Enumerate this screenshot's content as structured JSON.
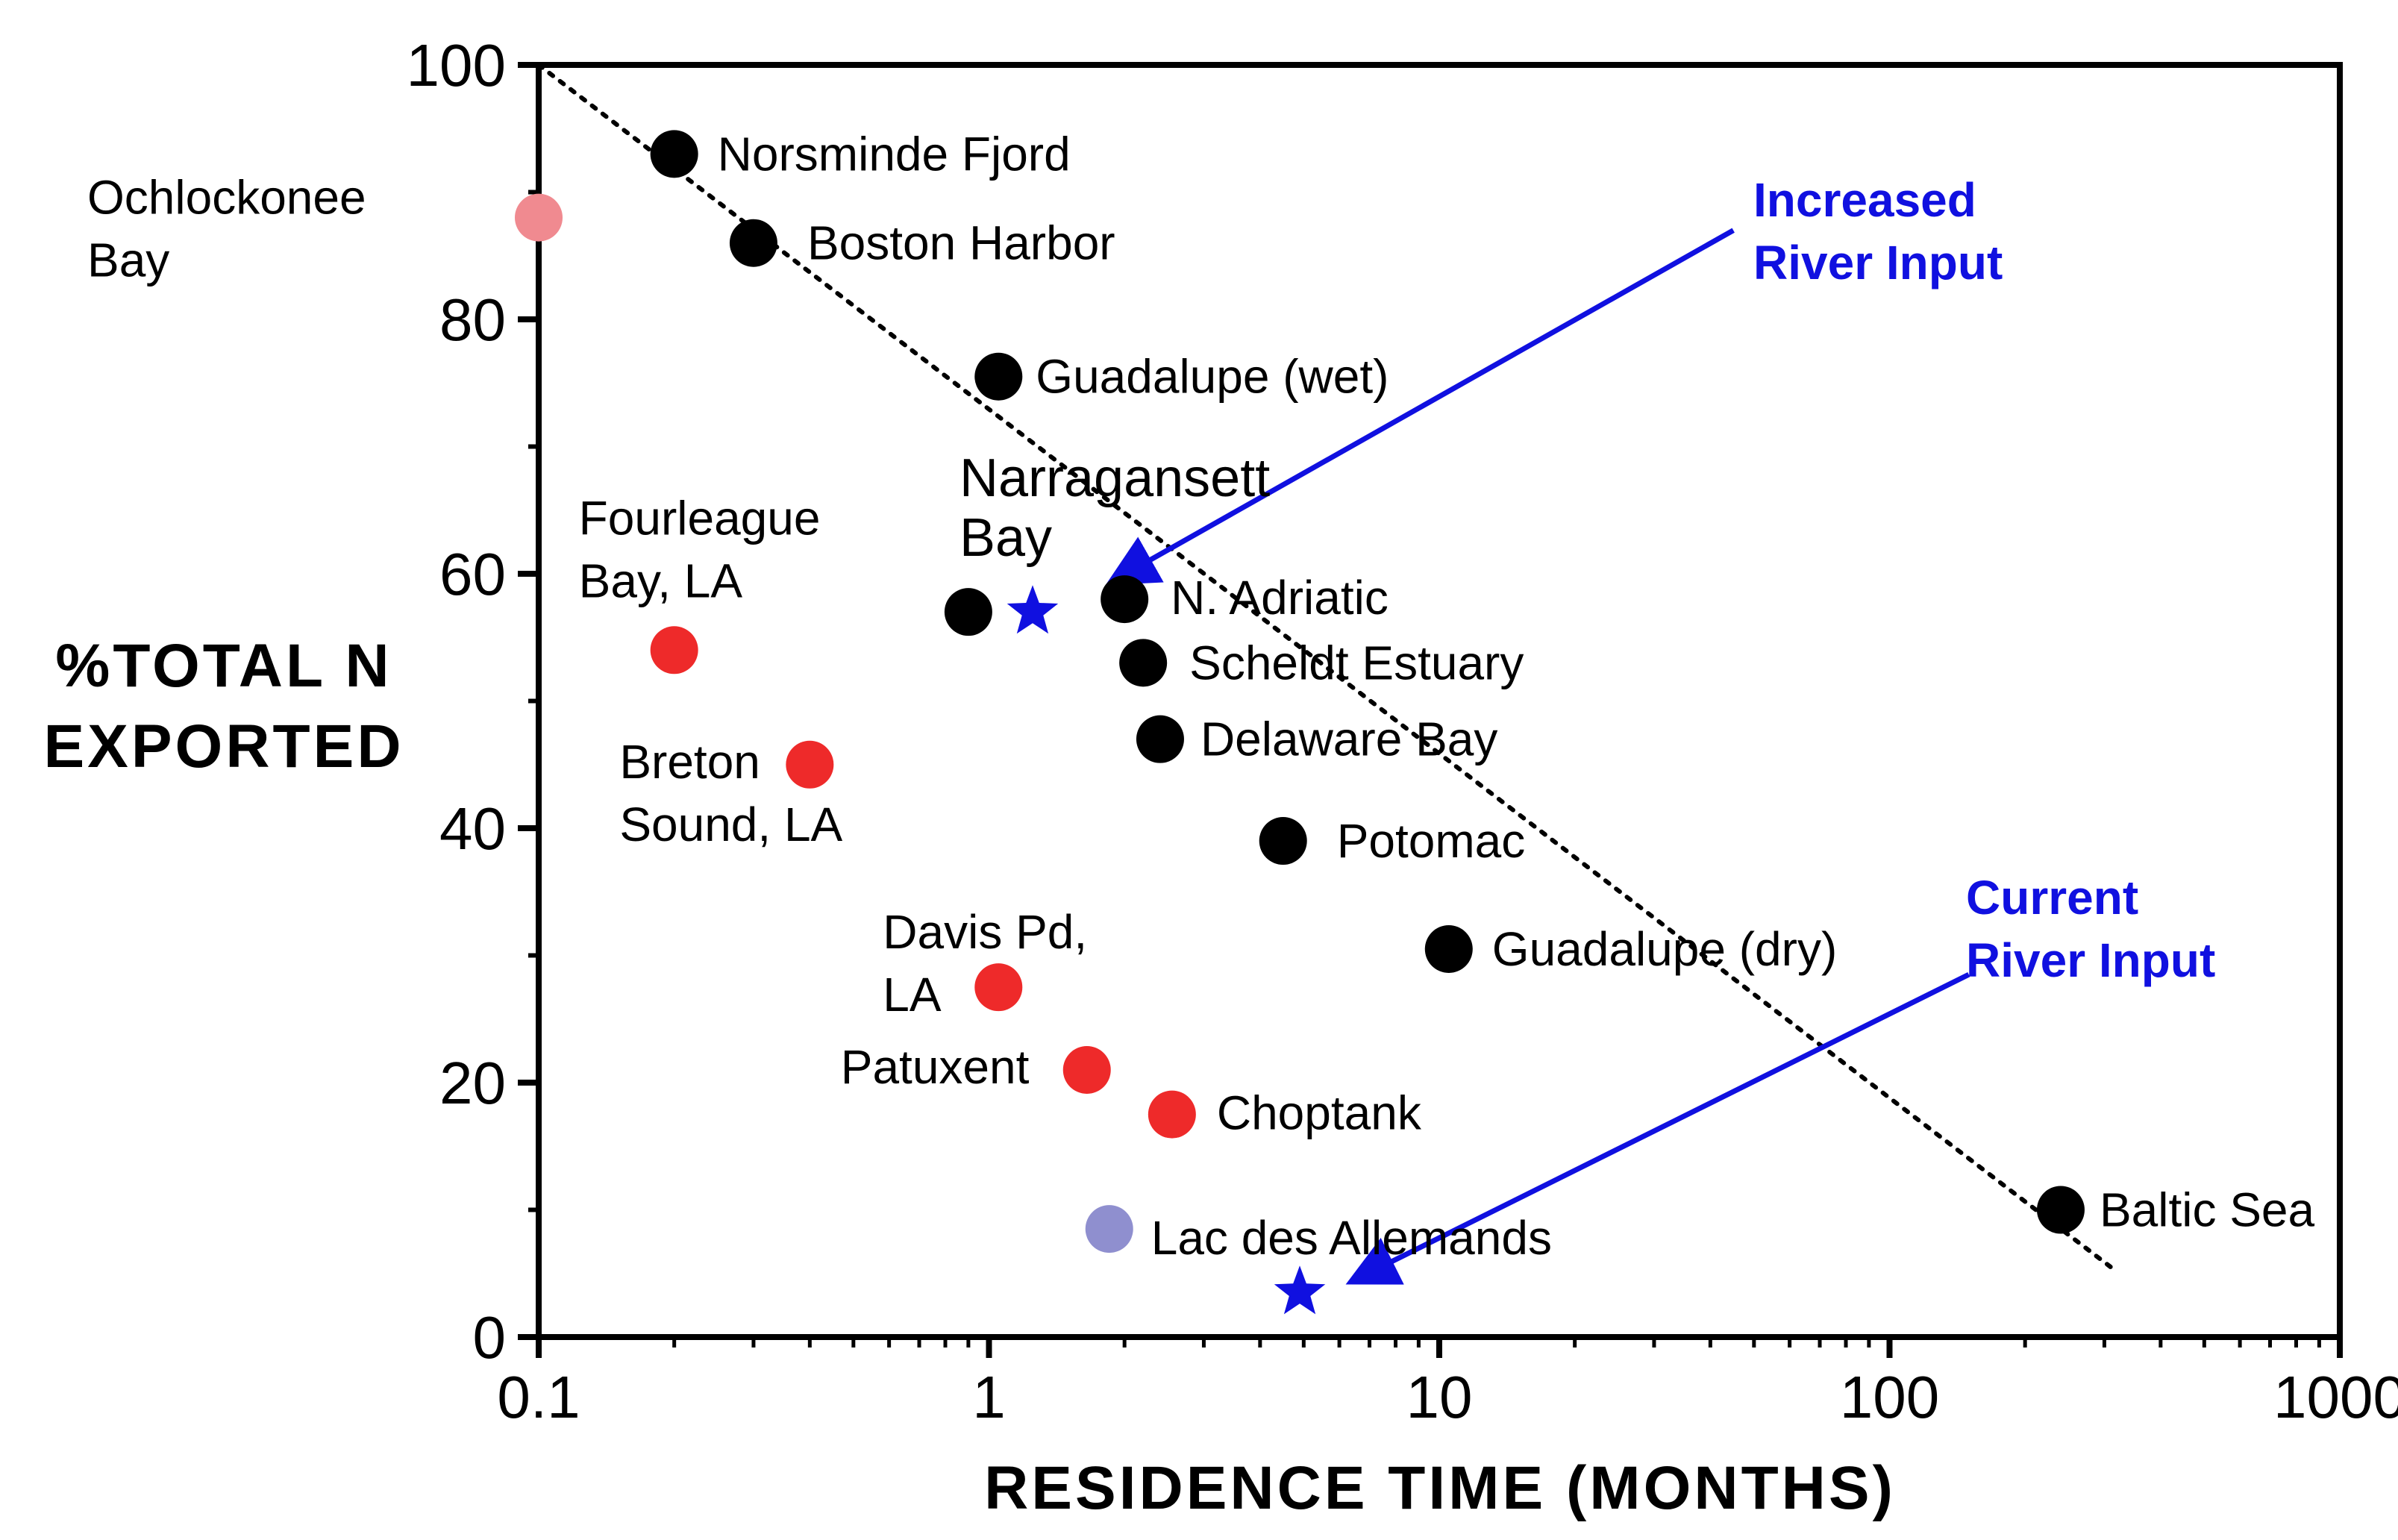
{
  "chart_data": {
    "type": "scatter",
    "xlabel": "RESIDENCE TIME (MONTHS)",
    "ylabel": [
      "%TOTAL N",
      "EXPORTED"
    ],
    "x_scale": "log",
    "xlim": [
      0.1,
      1000
    ],
    "ylim": [
      0,
      100
    ],
    "x_ticks": [
      {
        "value": 0.1,
        "label": "0.1"
      },
      {
        "value": 1,
        "label": "1"
      },
      {
        "value": 10,
        "label": "10"
      },
      {
        "value": 100,
        "label": "100"
      },
      {
        "value": 1000,
        "label": "1000"
      }
    ],
    "y_ticks": [
      {
        "value": 0,
        "label": "0"
      },
      {
        "value": 20,
        "label": "20"
      },
      {
        "value": 40,
        "label": "40"
      },
      {
        "value": 60,
        "label": "60"
      },
      {
        "value": 80,
        "label": "80"
      },
      {
        "value": 100,
        "label": "100"
      }
    ],
    "grid": false,
    "colors": {
      "black": "#000000",
      "red": "#ee2a2a",
      "pink": "#f08a90",
      "lavender": "#8f8fcf",
      "blue": "#1010e0",
      "trend": "#000000"
    },
    "points": [
      {
        "id": "norsminde",
        "x": 0.2,
        "y": 93,
        "color": "black",
        "label": [
          "Norsminde Fjord"
        ],
        "marker": "circle"
      },
      {
        "id": "ochlockonee",
        "x": 0.1,
        "y": 88,
        "color": "pink",
        "label": [
          "Ochlockonee",
          "Bay"
        ],
        "marker": "circle"
      },
      {
        "id": "boston",
        "x": 0.3,
        "y": 86,
        "color": "black",
        "label": [
          "Boston Harbor"
        ],
        "marker": "circle"
      },
      {
        "id": "guadalupe-wet",
        "x": 1.05,
        "y": 75.5,
        "color": "black",
        "label": [
          "Guadalupe (wet)"
        ],
        "marker": "circle"
      },
      {
        "id": "fourleague",
        "x": 0.2,
        "y": 54,
        "color": "red",
        "label": [
          "Fourleague",
          "Bay, LA"
        ],
        "marker": "circle"
      },
      {
        "id": "narragansett-dot",
        "x": 0.9,
        "y": 57,
        "color": "black",
        "label": [],
        "marker": "circle"
      },
      {
        "id": "narragansett",
        "x": 1.25,
        "y": 57,
        "color": "blue",
        "label": [
          "Narragansett",
          "Bay"
        ],
        "marker": "star"
      },
      {
        "id": "n-adriatic",
        "x": 2.0,
        "y": 58,
        "color": "black",
        "label": [
          "N. Adriatic"
        ],
        "marker": "circle"
      },
      {
        "id": "scheldt",
        "x": 2.2,
        "y": 53,
        "color": "black",
        "label": [
          "Scheldt Estuary"
        ],
        "marker": "circle"
      },
      {
        "id": "delaware",
        "x": 2.4,
        "y": 47,
        "color": "black",
        "label": [
          "Delaware Bay"
        ],
        "marker": "circle"
      },
      {
        "id": "breton",
        "x": 0.4,
        "y": 45,
        "color": "red",
        "label": [
          "Breton",
          "Sound, LA"
        ],
        "marker": "circle"
      },
      {
        "id": "potomac",
        "x": 4.5,
        "y": 39,
        "color": "black",
        "label": [
          "Potomac"
        ],
        "marker": "circle"
      },
      {
        "id": "guadalupe-dry",
        "x": 10.5,
        "y": 30.5,
        "color": "black",
        "label": [
          "Guadalupe (dry)"
        ],
        "marker": "circle"
      },
      {
        "id": "davis",
        "x": 1.05,
        "y": 27.5,
        "color": "red",
        "label": [
          "Davis Pd,",
          "LA"
        ],
        "marker": "circle"
      },
      {
        "id": "patuxent",
        "x": 1.65,
        "y": 21,
        "color": "red",
        "label": [
          "Patuxent"
        ],
        "marker": "circle"
      },
      {
        "id": "choptank",
        "x": 2.55,
        "y": 17.5,
        "color": "red",
        "label": [
          "Choptank"
        ],
        "marker": "circle"
      },
      {
        "id": "lac-des-allemands-dot",
        "x": 1.85,
        "y": 8.5,
        "color": "lavender",
        "label": [
          "Lac des Allemands"
        ],
        "marker": "circle"
      },
      {
        "id": "lac-des-allemands-star",
        "x": 4.9,
        "y": 3.5,
        "color": "blue",
        "label": [],
        "marker": "star"
      },
      {
        "id": "baltic",
        "x": 240,
        "y": 10,
        "color": "black",
        "label": [
          "Baltic Sea"
        ],
        "marker": "circle"
      }
    ],
    "trend_line": {
      "x": [
        0.1,
        310
      ],
      "y": [
        100,
        5.5
      ],
      "style": "dotted"
    },
    "annotations": [
      {
        "id": "increased-river-input",
        "text": [
          "Increased",
          "River Input"
        ],
        "color": "blue",
        "arrow_from": [
          45,
          87
        ],
        "arrow_to": [
          1.9,
          59.5
        ]
      },
      {
        "id": "current-river-input",
        "text": [
          "Current",
          "River Input"
        ],
        "color": "blue",
        "arrow_from": [
          150,
          28.5
        ],
        "arrow_to": [
          6.5,
          4.5
        ]
      }
    ]
  }
}
